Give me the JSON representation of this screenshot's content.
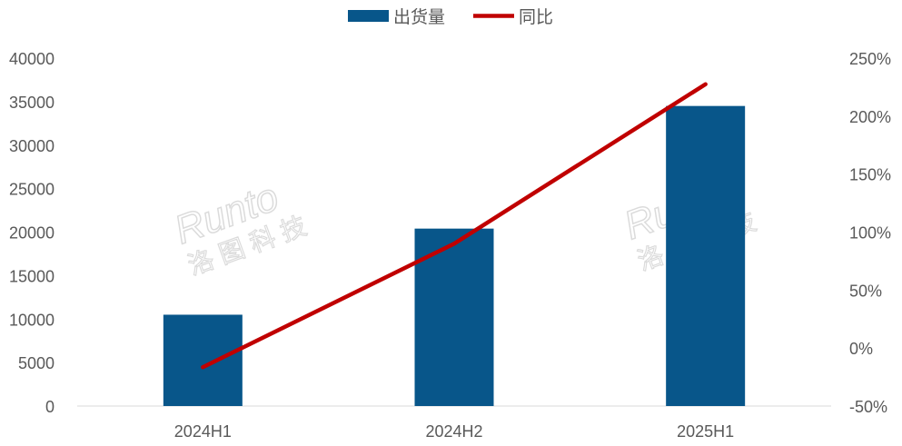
{
  "chart_data": {
    "type": "bar+line",
    "categories": [
      "2024H1",
      "2024H2",
      "2025H1"
    ],
    "series": [
      {
        "name": "出货量",
        "type": "bar",
        "axis": "left",
        "values": [
          10500,
          20400,
          34500
        ],
        "color": "#08568A"
      },
      {
        "name": "同比",
        "type": "line",
        "axis": "right",
        "values": [
          -16.5,
          90,
          227.5
        ],
        "color": "#C00000"
      }
    ],
    "left_axis": {
      "ylim": [
        0,
        40000
      ],
      "ticks": [
        "0",
        "5000",
        "10000",
        "15000",
        "20000",
        "25000",
        "30000",
        "35000",
        "40000"
      ]
    },
    "right_axis": {
      "ylim": [
        -50,
        250
      ],
      "ticks": [
        "-50%",
        "0%",
        "50%",
        "100%",
        "150%",
        "200%",
        "250%"
      ]
    },
    "legend": "top",
    "grid": false,
    "watermark": "Runto 洛图科技"
  }
}
